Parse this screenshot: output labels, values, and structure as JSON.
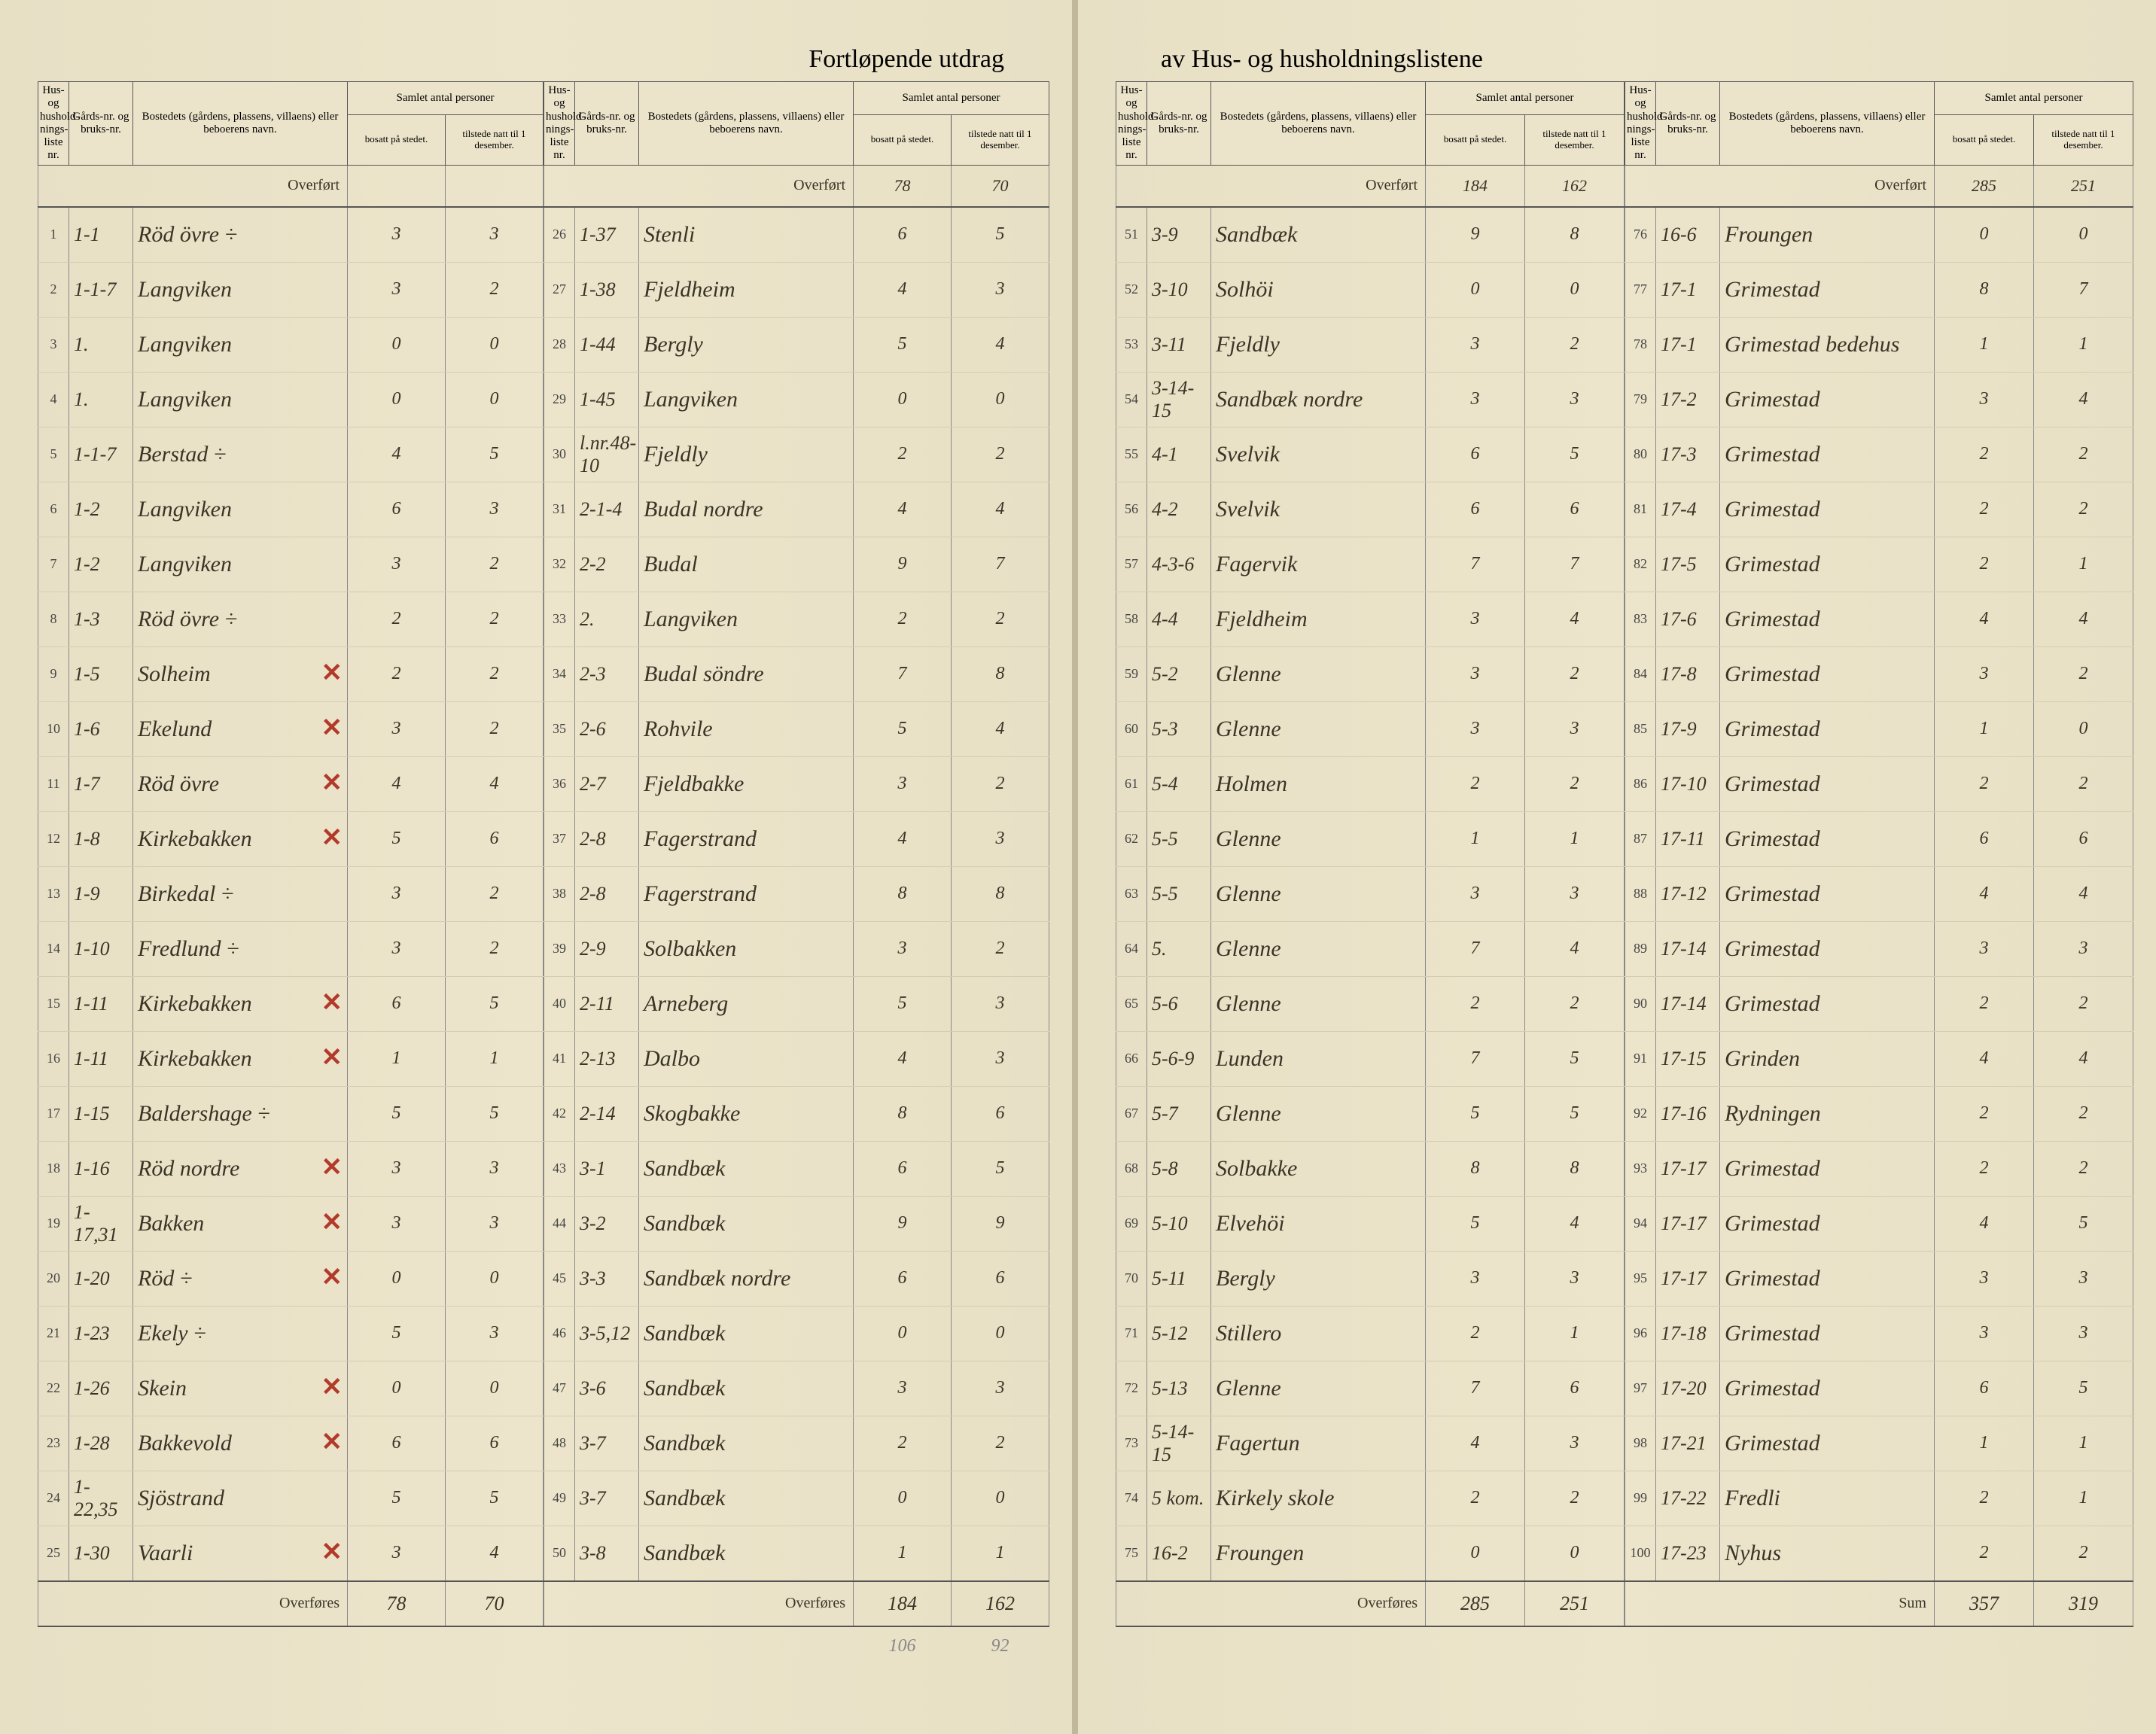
{
  "title_left": "Fortløpende utdrag",
  "title_right": "av Hus- og husholdningslistene",
  "headers": {
    "liste": "Hus- og hushold-nings-liste nr.",
    "gnr": "Gårds-nr. og bruks-nr.",
    "bosted": "Bostedets (gårdens, plassens, villaens) eller beboerens navn.",
    "samlet": "Samlet antal personer",
    "bosatt": "bosatt på stedet.",
    "tilstede": "tilstede natt til 1 desember."
  },
  "labels": {
    "overfort": "Overført",
    "overfores": "Overføres",
    "sum": "Sum"
  },
  "columns": [
    {
      "carry_in": [
        "",
        ""
      ],
      "rows": [
        {
          "i": "1",
          "g": "1-1",
          "n": "Röd övre ÷",
          "b": "3",
          "t": "3",
          "x": false
        },
        {
          "i": "2",
          "g": "1-1-7",
          "n": "Langviken",
          "b": "3",
          "t": "2",
          "x": false
        },
        {
          "i": "3",
          "g": "1.",
          "n": "Langviken",
          "b": "0",
          "t": "0",
          "x": false
        },
        {
          "i": "4",
          "g": "1.",
          "n": "Langviken",
          "b": "0",
          "t": "0",
          "x": false
        },
        {
          "i": "5",
          "g": "1-1-7",
          "n": "Berstad ÷",
          "b": "4",
          "t": "5",
          "x": false
        },
        {
          "i": "6",
          "g": "1-2",
          "n": "Langviken",
          "b": "6",
          "t": "3",
          "x": false
        },
        {
          "i": "7",
          "g": "1-2",
          "n": "Langviken",
          "b": "3",
          "t": "2",
          "x": false
        },
        {
          "i": "8",
          "g": "1-3",
          "n": "Röd övre ÷",
          "b": "2",
          "t": "2",
          "x": false
        },
        {
          "i": "9",
          "g": "1-5",
          "n": "Solheim",
          "b": "2",
          "t": "2",
          "x": true
        },
        {
          "i": "10",
          "g": "1-6",
          "n": "Ekelund",
          "b": "3",
          "t": "2",
          "x": true
        },
        {
          "i": "11",
          "g": "1-7",
          "n": "Röd övre",
          "b": "4",
          "t": "4",
          "x": true
        },
        {
          "i": "12",
          "g": "1-8",
          "n": "Kirkebakken",
          "b": "5",
          "t": "6",
          "x": true
        },
        {
          "i": "13",
          "g": "1-9",
          "n": "Birkedal ÷",
          "b": "3",
          "t": "2",
          "x": false
        },
        {
          "i": "14",
          "g": "1-10",
          "n": "Fredlund ÷",
          "b": "3",
          "t": "2",
          "x": false
        },
        {
          "i": "15",
          "g": "1-11",
          "n": "Kirkebakken",
          "b": "6",
          "t": "5",
          "x": true
        },
        {
          "i": "16",
          "g": "1-11",
          "n": "Kirkebakken",
          "b": "1",
          "t": "1",
          "x": true
        },
        {
          "i": "17",
          "g": "1-15",
          "n": "Baldershage ÷",
          "b": "5",
          "t": "5",
          "x": false
        },
        {
          "i": "18",
          "g": "1-16",
          "n": "Röd nordre",
          "b": "3",
          "t": "3",
          "x": true
        },
        {
          "i": "19",
          "g": "1-17,31",
          "n": "Bakken",
          "b": "3",
          "t": "3",
          "x": true
        },
        {
          "i": "20",
          "g": "1-20",
          "n": "Röd ÷",
          "b": "0",
          "t": "0",
          "x": true
        },
        {
          "i": "21",
          "g": "1-23",
          "n": "Ekely ÷",
          "b": "5",
          "t": "3",
          "x": false
        },
        {
          "i": "22",
          "g": "1-26",
          "n": "Skein",
          "b": "0",
          "t": "0",
          "x": true
        },
        {
          "i": "23",
          "g": "1-28",
          "n": "Bakkevold",
          "b": "6",
          "t": "6",
          "x": true
        },
        {
          "i": "24",
          "g": "1-22,35",
          "n": "Sjöstrand",
          "b": "5",
          "t": "5",
          "x": false
        },
        {
          "i": "25",
          "g": "1-30",
          "n": "Vaarli",
          "b": "3",
          "t": "4",
          "x": true
        }
      ],
      "carry_out": [
        "78",
        "70"
      ],
      "footer_label": "overfores"
    },
    {
      "carry_in": [
        "78",
        "70"
      ],
      "rows": [
        {
          "i": "26",
          "g": "1-37",
          "n": "Stenli",
          "b": "6",
          "t": "5",
          "x": false
        },
        {
          "i": "27",
          "g": "1-38",
          "n": "Fjeldheim",
          "b": "4",
          "t": "3",
          "x": false
        },
        {
          "i": "28",
          "g": "1-44",
          "n": "Bergly",
          "b": "5",
          "t": "4",
          "x": false
        },
        {
          "i": "29",
          "g": "1-45",
          "n": "Langviken",
          "b": "0",
          "t": "0",
          "x": false
        },
        {
          "i": "30",
          "g": "l.nr.48-10",
          "n": "Fjeldly",
          "b": "2",
          "t": "2",
          "x": false
        },
        {
          "i": "31",
          "g": "2-1-4",
          "n": "Budal nordre",
          "b": "4",
          "t": "4",
          "x": false
        },
        {
          "i": "32",
          "g": "2-2",
          "n": "Budal",
          "b": "9",
          "t": "7",
          "x": false
        },
        {
          "i": "33",
          "g": "2.",
          "n": "Langviken",
          "b": "2",
          "t": "2",
          "x": false
        },
        {
          "i": "34",
          "g": "2-3",
          "n": "Budal söndre",
          "b": "7",
          "t": "8",
          "x": false
        },
        {
          "i": "35",
          "g": "2-6",
          "n": "Rohvile",
          "b": "5",
          "t": "4",
          "x": false
        },
        {
          "i": "36",
          "g": "2-7",
          "n": "Fjeldbakke",
          "b": "3",
          "t": "2",
          "x": false
        },
        {
          "i": "37",
          "g": "2-8",
          "n": "Fagerstrand",
          "b": "4",
          "t": "3",
          "x": false
        },
        {
          "i": "38",
          "g": "2-8",
          "n": "Fagerstrand",
          "b": "8",
          "t": "8",
          "x": false
        },
        {
          "i": "39",
          "g": "2-9",
          "n": "Solbakken",
          "b": "3",
          "t": "2",
          "x": false
        },
        {
          "i": "40",
          "g": "2-11",
          "n": "Arneberg",
          "b": "5",
          "t": "3",
          "x": false
        },
        {
          "i": "41",
          "g": "2-13",
          "n": "Dalbo",
          "b": "4",
          "t": "3",
          "x": false
        },
        {
          "i": "42",
          "g": "2-14",
          "n": "Skogbakke",
          "b": "8",
          "t": "6",
          "x": false
        },
        {
          "i": "43",
          "g": "3-1",
          "n": "Sandbæk",
          "b": "6",
          "t": "5",
          "x": false
        },
        {
          "i": "44",
          "g": "3-2",
          "n": "Sandbæk",
          "b": "9",
          "t": "9",
          "x": false
        },
        {
          "i": "45",
          "g": "3-3",
          "n": "Sandbæk nordre",
          "b": "6",
          "t": "6",
          "x": false
        },
        {
          "i": "46",
          "g": "3-5,12",
          "n": "Sandbæk",
          "b": "0",
          "t": "0",
          "x": false
        },
        {
          "i": "47",
          "g": "3-6",
          "n": "Sandbæk",
          "b": "3",
          "t": "3",
          "x": false
        },
        {
          "i": "48",
          "g": "3-7",
          "n": "Sandbæk",
          "b": "2",
          "t": "2",
          "x": false
        },
        {
          "i": "49",
          "g": "3-7",
          "n": "Sandbæk",
          "b": "0",
          "t": "0",
          "x": false
        },
        {
          "i": "50",
          "g": "3-8",
          "n": "Sandbæk",
          "b": "1",
          "t": "1",
          "x": false
        }
      ],
      "carry_out": [
        "184",
        "162"
      ],
      "extra": [
        "106",
        "92"
      ],
      "footer_label": "overfores"
    },
    {
      "carry_in": [
        "184",
        "162"
      ],
      "rows": [
        {
          "i": "51",
          "g": "3-9",
          "n": "Sandbæk",
          "b": "9",
          "t": "8",
          "x": false
        },
        {
          "i": "52",
          "g": "3-10",
          "n": "Solhöi",
          "b": "0",
          "t": "0",
          "x": false
        },
        {
          "i": "53",
          "g": "3-11",
          "n": "Fjeldly",
          "b": "3",
          "t": "2",
          "x": false
        },
        {
          "i": "54",
          "g": "3-14-15",
          "n": "Sandbæk nordre",
          "b": "3",
          "t": "3",
          "x": false
        },
        {
          "i": "55",
          "g": "4-1",
          "n": "Svelvik",
          "b": "6",
          "t": "5",
          "x": false
        },
        {
          "i": "56",
          "g": "4-2",
          "n": "Svelvik",
          "b": "6",
          "t": "6",
          "x": false
        },
        {
          "i": "57",
          "g": "4-3-6",
          "n": "Fagervik",
          "b": "7",
          "t": "7",
          "x": false
        },
        {
          "i": "58",
          "g": "4-4",
          "n": "Fjeldheim",
          "b": "3",
          "t": "4",
          "x": false
        },
        {
          "i": "59",
          "g": "5-2",
          "n": "Glenne",
          "b": "3",
          "t": "2",
          "x": false
        },
        {
          "i": "60",
          "g": "5-3",
          "n": "Glenne",
          "b": "3",
          "t": "3",
          "x": false
        },
        {
          "i": "61",
          "g": "5-4",
          "n": "Holmen",
          "b": "2",
          "t": "2",
          "x": false
        },
        {
          "i": "62",
          "g": "5-5",
          "n": "Glenne",
          "b": "1",
          "t": "1",
          "x": false
        },
        {
          "i": "63",
          "g": "5-5",
          "n": "Glenne",
          "b": "3",
          "t": "3",
          "x": false
        },
        {
          "i": "64",
          "g": "5.",
          "n": "Glenne",
          "b": "7",
          "t": "4",
          "x": false
        },
        {
          "i": "65",
          "g": "5-6",
          "n": "Glenne",
          "b": "2",
          "t": "2",
          "x": false
        },
        {
          "i": "66",
          "g": "5-6-9",
          "n": "Lunden",
          "b": "7",
          "t": "5",
          "x": false
        },
        {
          "i": "67",
          "g": "5-7",
          "n": "Glenne",
          "b": "5",
          "t": "5",
          "x": false
        },
        {
          "i": "68",
          "g": "5-8",
          "n": "Solbakke",
          "b": "8",
          "t": "8",
          "x": false
        },
        {
          "i": "69",
          "g": "5-10",
          "n": "Elvehöi",
          "b": "5",
          "t": "4",
          "x": false
        },
        {
          "i": "70",
          "g": "5-11",
          "n": "Bergly",
          "b": "3",
          "t": "3",
          "x": false
        },
        {
          "i": "71",
          "g": "5-12",
          "n": "Stillero",
          "b": "2",
          "t": "1",
          "x": false
        },
        {
          "i": "72",
          "g": "5-13",
          "n": "Glenne",
          "b": "7",
          "t": "6",
          "x": false
        },
        {
          "i": "73",
          "g": "5-14-15",
          "n": "Fagertun",
          "b": "4",
          "t": "3",
          "x": false
        },
        {
          "i": "74",
          "g": "5 kom.",
          "n": "Kirkely skole",
          "b": "2",
          "t": "2",
          "x": false
        },
        {
          "i": "75",
          "g": "16-2",
          "n": "Froungen",
          "b": "0",
          "t": "0",
          "x": false
        }
      ],
      "carry_out": [
        "285",
        "251"
      ],
      "footer_label": "overfores"
    },
    {
      "carry_in": [
        "285",
        "251"
      ],
      "rows": [
        {
          "i": "76",
          "g": "16-6",
          "n": "Froungen",
          "b": "0",
          "t": "0",
          "x": false
        },
        {
          "i": "77",
          "g": "17-1",
          "n": "Grimestad",
          "b": "8",
          "t": "7",
          "x": false
        },
        {
          "i": "78",
          "g": "17-1",
          "n": "Grimestad bedehus",
          "b": "1",
          "t": "1",
          "x": false
        },
        {
          "i": "79",
          "g": "17-2",
          "n": "Grimestad",
          "b": "3",
          "t": "4",
          "x": false
        },
        {
          "i": "80",
          "g": "17-3",
          "n": "Grimestad",
          "b": "2",
          "t": "2",
          "x": false
        },
        {
          "i": "81",
          "g": "17-4",
          "n": "Grimestad",
          "b": "2",
          "t": "2",
          "x": false
        },
        {
          "i": "82",
          "g": "17-5",
          "n": "Grimestad",
          "b": "2",
          "t": "1",
          "x": false
        },
        {
          "i": "83",
          "g": "17-6",
          "n": "Grimestad",
          "b": "4",
          "t": "4",
          "x": false
        },
        {
          "i": "84",
          "g": "17-8",
          "n": "Grimestad",
          "b": "3",
          "t": "2",
          "x": false
        },
        {
          "i": "85",
          "g": "17-9",
          "n": "Grimestad",
          "b": "1",
          "t": "0",
          "x": false
        },
        {
          "i": "86",
          "g": "17-10",
          "n": "Grimestad",
          "b": "2",
          "t": "2",
          "x": false
        },
        {
          "i": "87",
          "g": "17-11",
          "n": "Grimestad",
          "b": "6",
          "t": "6",
          "x": false
        },
        {
          "i": "88",
          "g": "17-12",
          "n": "Grimestad",
          "b": "4",
          "t": "4",
          "x": false
        },
        {
          "i": "89",
          "g": "17-14",
          "n": "Grimestad",
          "b": "3",
          "t": "3",
          "x": false
        },
        {
          "i": "90",
          "g": "17-14",
          "n": "Grimestad",
          "b": "2",
          "t": "2",
          "x": false
        },
        {
          "i": "91",
          "g": "17-15",
          "n": "Grinden",
          "b": "4",
          "t": "4",
          "x": false
        },
        {
          "i": "92",
          "g": "17-16",
          "n": "Rydningen",
          "b": "2",
          "t": "2",
          "x": false
        },
        {
          "i": "93",
          "g": "17-17",
          "n": "Grimestad",
          "b": "2",
          "t": "2",
          "x": false
        },
        {
          "i": "94",
          "g": "17-17",
          "n": "Grimestad",
          "b": "4",
          "t": "5",
          "x": false
        },
        {
          "i": "95",
          "g": "17-17",
          "n": "Grimestad",
          "b": "3",
          "t": "3",
          "x": false
        },
        {
          "i": "96",
          "g": "17-18",
          "n": "Grimestad",
          "b": "3",
          "t": "3",
          "x": false
        },
        {
          "i": "97",
          "g": "17-20",
          "n": "Grimestad",
          "b": "6",
          "t": "5",
          "x": false
        },
        {
          "i": "98",
          "g": "17-21",
          "n": "Grimestad",
          "b": "1",
          "t": "1",
          "x": false
        },
        {
          "i": "99",
          "g": "17-22",
          "n": "Fredli",
          "b": "2",
          "t": "1",
          "x": false
        },
        {
          "i": "100",
          "g": "17-23",
          "n": "Nyhus",
          "b": "2",
          "t": "2",
          "x": false
        }
      ],
      "carry_out": [
        "357",
        "319"
      ],
      "footer_label": "sum"
    }
  ]
}
